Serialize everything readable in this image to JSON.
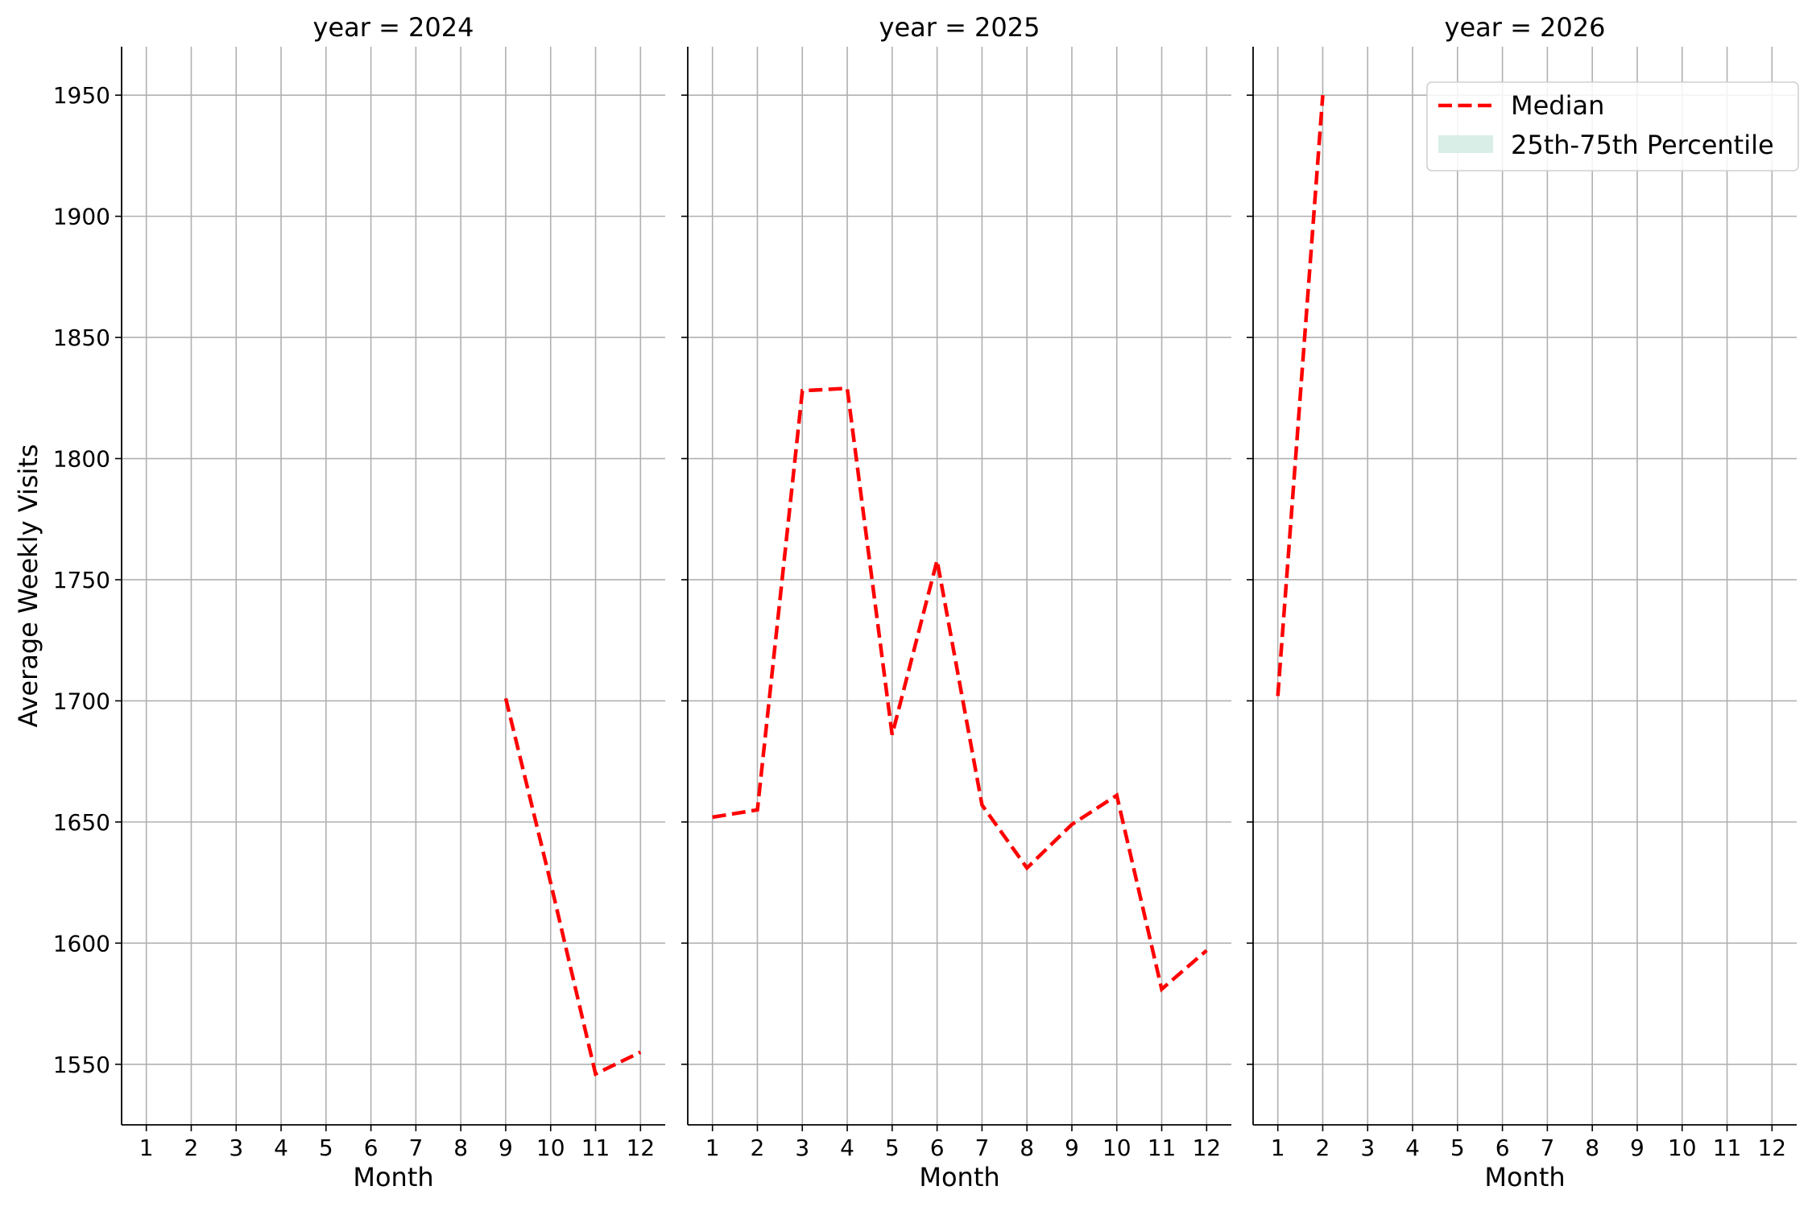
{
  "chart_data": {
    "type": "line",
    "layout": "facet-columns",
    "shared_y": true,
    "ylabel": "Average Weekly Visits",
    "ylim": [
      1525,
      1970
    ],
    "yticks": [
      1550,
      1600,
      1650,
      1700,
      1750,
      1800,
      1850,
      1900,
      1950
    ],
    "grid": true,
    "legend": {
      "placement": "top-right of last panel",
      "entries": [
        {
          "label": "Median",
          "style": "dashed-line",
          "color": "#ff0000"
        },
        {
          "label": "25th-75th Percentile",
          "style": "filled-band",
          "color": "#d9eee6"
        }
      ]
    },
    "panels": [
      {
        "title": "year = 2024",
        "xlabel": "Month",
        "xlim": [
          0.45,
          12.55
        ],
        "xticks": [
          1,
          2,
          3,
          4,
          5,
          6,
          7,
          8,
          9,
          10,
          11,
          12
        ],
        "series": [
          {
            "name": "Median",
            "color": "#ff0000",
            "x": [
              9,
              10,
              11,
              12
            ],
            "y": [
              1701,
              1625,
              1546,
              1555
            ]
          }
        ]
      },
      {
        "title": "year = 2025",
        "xlabel": "Month",
        "xlim": [
          0.45,
          12.55
        ],
        "xticks": [
          1,
          2,
          3,
          4,
          5,
          6,
          7,
          8,
          9,
          10,
          11,
          12
        ],
        "series": [
          {
            "name": "Median",
            "color": "#ff0000",
            "x": [
              1,
              2,
              3,
              4,
              5,
              6,
              7,
              8,
              9,
              10,
              11,
              12
            ],
            "y": [
              1652,
              1655,
              1828,
              1829,
              1686,
              1758,
              1657,
              1631,
              1649,
              1661,
              1581,
              1597
            ]
          }
        ]
      },
      {
        "title": "year = 2026",
        "xlabel": "Month",
        "xlim": [
          0.45,
          12.55
        ],
        "xticks": [
          1,
          2,
          3,
          4,
          5,
          6,
          7,
          8,
          9,
          10,
          11,
          12
        ],
        "series": [
          {
            "name": "Median",
            "color": "#ff0000",
            "x": [
              1,
              2
            ],
            "y": [
              1702,
              1950
            ]
          }
        ]
      }
    ]
  }
}
